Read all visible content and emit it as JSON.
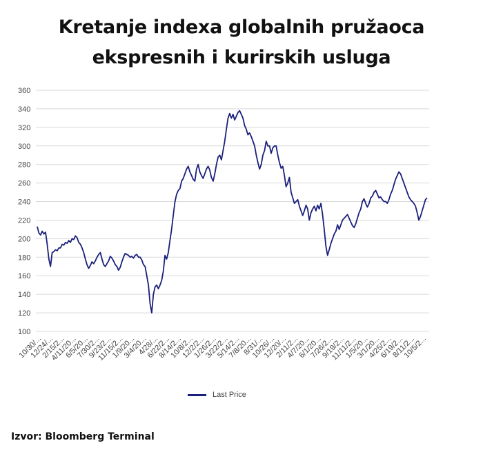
{
  "title_line1": "Kretanje indexa globalnih pružaoca",
  "title_line2": "ekspresnih i kurirskih usluga",
  "source": "Izvor: Bloomberg Terminal",
  "chart_data": {
    "type": "line",
    "title": "Kretanje indexa globalnih pružaoca ekspresnih i kurirskih usluga",
    "ylim": [
      100,
      360
    ],
    "yticks": [
      100,
      120,
      140,
      160,
      180,
      200,
      220,
      240,
      260,
      280,
      300,
      320,
      340,
      360
    ],
    "grid": true,
    "legend_position": "bottom-center",
    "line_color": "#1a1f7a",
    "xtick_labels": [
      "10/30/...",
      "12/24/...",
      "2/15/2...",
      "4/11/20...",
      "6/5/20...",
      "7/30/2...",
      "9/23/2...",
      "11/15/2...",
      "1/9/20...",
      "3/4/20...",
      "4/28/...",
      "6/22/2...",
      "8/14/2...",
      "10/8/2...",
      "12/2/2...",
      "1/26/2...",
      "3/22/2...",
      "5/14/2...",
      "7/8/20...",
      "8/31/...",
      "10/26/...",
      "12/20/...",
      "2/11/2...",
      "4/7/20...",
      "6/1/20...",
      "7/26/2...",
      "9/19/2...",
      "11/11/2...",
      "1/5/20...",
      "3/1/20...",
      "4/25/2...",
      "6/19/2...",
      "8/11/2...",
      "10/5/2..."
    ],
    "series": [
      {
        "name": "Last Price",
        "values": [
          213,
          206,
          204,
          208,
          205,
          207,
          194,
          178,
          170,
          185,
          186,
          188,
          187,
          190,
          190,
          194,
          193,
          196,
          195,
          198,
          196,
          200,
          199,
          203,
          201,
          196,
          194,
          190,
          185,
          178,
          172,
          168,
          171,
          175,
          173,
          176,
          180,
          183,
          185,
          178,
          172,
          170,
          173,
          176,
          181,
          179,
          176,
          172,
          170,
          166,
          169,
          175,
          180,
          184,
          183,
          182,
          180,
          181,
          179,
          182,
          183,
          180,
          180,
          177,
          172,
          170,
          160,
          150,
          130,
          120,
          140,
          148,
          150,
          146,
          150,
          155,
          165,
          182,
          178,
          185,
          198,
          210,
          225,
          240,
          248,
          252,
          254,
          262,
          265,
          270,
          275,
          278,
          272,
          268,
          264,
          262,
          275,
          280,
          272,
          268,
          265,
          270,
          275,
          278,
          274,
          266,
          262,
          270,
          280,
          288,
          290,
          285,
          295,
          305,
          318,
          330,
          335,
          330,
          334,
          328,
          332,
          336,
          338,
          334,
          330,
          322,
          318,
          312,
          314,
          310,
          305,
          300,
          290,
          282,
          275,
          280,
          290,
          295,
          305,
          300,
          300,
          292,
          298,
          300,
          300,
          290,
          282,
          276,
          278,
          268,
          256,
          260,
          266,
          250,
          244,
          238,
          240,
          242,
          235,
          230,
          225,
          230,
          236,
          232,
          220,
          228,
          232,
          235,
          230,
          236,
          232,
          238,
          226,
          210,
          192,
          182,
          188,
          195,
          200,
          205,
          208,
          215,
          210,
          215,
          220,
          222,
          224,
          226,
          222,
          218,
          214,
          212,
          216,
          222,
          228,
          232,
          240,
          243,
          238,
          234,
          238,
          244,
          246,
          250,
          252,
          248,
          244,
          245,
          242,
          240,
          240,
          238,
          242,
          248,
          252,
          258,
          264,
          268,
          272,
          270,
          265,
          260,
          255,
          250,
          245,
          242,
          240,
          238,
          235,
          228,
          220,
          224,
          230,
          236,
          242,
          244
        ]
      }
    ]
  }
}
